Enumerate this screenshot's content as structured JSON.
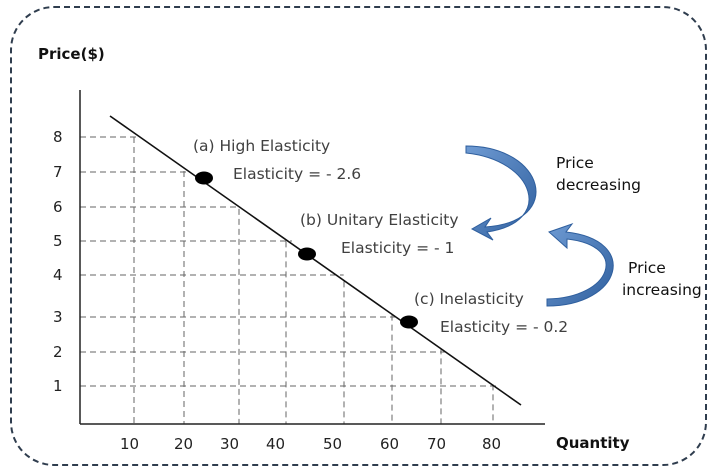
{
  "chart_data": {
    "type": "line",
    "ylabel": "Price($)",
    "xlabel": "Quantity",
    "x_ticks": [
      10,
      20,
      30,
      40,
      50,
      60,
      70,
      80
    ],
    "y_ticks": [
      1,
      2,
      3,
      4,
      5,
      6,
      7,
      8
    ],
    "xlim": [
      0,
      90
    ],
    "ylim": [
      0,
      9
    ],
    "grid": "dashed",
    "demand_line": [
      {
        "x": 5,
        "y": 8.6
      },
      {
        "x": 85,
        "y": 0.6
      }
    ],
    "points": [
      {
        "x": 24,
        "y": 6.8,
        "label": "(a)  High Elasticity",
        "elasticity": "Elasticity = - 2.6"
      },
      {
        "x": 44,
        "y": 4.6,
        "label": "(b) Unitary Elasticity",
        "elasticity": "Elasticity = - 1"
      },
      {
        "x": 65,
        "y": 2.8,
        "label": "(c) Inelasticity",
        "elasticity": "Elasticity = - 0.2"
      }
    ],
    "annotations": [
      {
        "direction": "down",
        "lines": [
          "Price",
          "decreasing"
        ]
      },
      {
        "direction": "up",
        "lines": [
          "Price",
          "increasing"
        ]
      }
    ]
  }
}
